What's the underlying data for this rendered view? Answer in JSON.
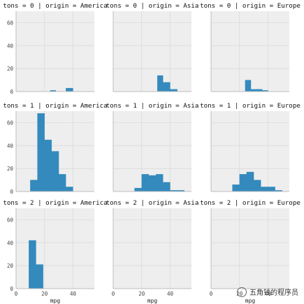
{
  "chart_data": {
    "type": "histogram-facet-grid",
    "row_var": "tons",
    "col_var": "origin",
    "rows": [
      0,
      1,
      2
    ],
    "cols": [
      "America",
      "Asia",
      "Europe"
    ],
    "xlabel": "mpg",
    "xlim": [
      0,
      55
    ],
    "ylim": [
      0,
      70
    ],
    "x_ticks": [
      0,
      20,
      40
    ],
    "y_ticks": [
      0,
      20,
      40,
      60
    ],
    "grid": true,
    "facets": [
      {
        "title": "tons = 0 | origin = America",
        "row": 0,
        "col": 0,
        "bins": [
          [
            24,
            28,
            1
          ],
          [
            35,
            40,
            3
          ]
        ]
      },
      {
        "title": "tons = 0 | origin = Asia",
        "row": 0,
        "col": 1,
        "bins": [
          [
            31,
            35,
            14
          ],
          [
            35,
            40,
            8
          ],
          [
            40,
            45,
            2
          ]
        ]
      },
      {
        "title": "tons = 0 | origin = Europe",
        "row": 0,
        "col": 2,
        "bins": [
          [
            24,
            28,
            10
          ],
          [
            28,
            32,
            2
          ],
          [
            32,
            36,
            2
          ],
          [
            36,
            40,
            1
          ]
        ]
      },
      {
        "title": "tons = 1 | origin = America",
        "row": 1,
        "col": 0,
        "bins": [
          [
            10,
            15,
            10
          ],
          [
            15,
            20,
            68
          ],
          [
            20,
            25,
            45
          ],
          [
            25,
            30,
            35
          ],
          [
            30,
            35,
            15
          ],
          [
            35,
            40,
            4
          ]
        ]
      },
      {
        "title": "tons = 1 | origin = Asia",
        "row": 1,
        "col": 1,
        "bins": [
          [
            15,
            20,
            3
          ],
          [
            20,
            25,
            15
          ],
          [
            25,
            30,
            14
          ],
          [
            30,
            35,
            15
          ],
          [
            35,
            40,
            8
          ],
          [
            40,
            45,
            1
          ],
          [
            45,
            50,
            1
          ]
        ]
      },
      {
        "title": "tons = 1 | origin = Europe",
        "row": 1,
        "col": 2,
        "bins": [
          [
            15,
            20,
            6
          ],
          [
            20,
            25,
            15
          ],
          [
            25,
            30,
            17
          ],
          [
            30,
            35,
            10
          ],
          [
            35,
            40,
            4
          ],
          [
            40,
            45,
            4
          ],
          [
            45,
            50,
            1
          ]
        ]
      },
      {
        "title": "tons = 2 | origin = America",
        "row": 2,
        "col": 0,
        "bins": [
          [
            9,
            14,
            42
          ],
          [
            14,
            19,
            21
          ]
        ]
      },
      {
        "title": "tons = 2 | origin = Asia",
        "row": 2,
        "col": 1,
        "bins": []
      },
      {
        "title": "tons = 2 | origin = Europe",
        "row": 2,
        "col": 2,
        "bins": []
      }
    ],
    "colors": {
      "bar": "#348abd",
      "panel_bg": "#eeeeee",
      "grid": "#ffffff",
      "axis": "#bcbcbc"
    }
  },
  "watermark": {
    "text": "五角钱的程序员",
    "icon": "wechat-icon"
  }
}
